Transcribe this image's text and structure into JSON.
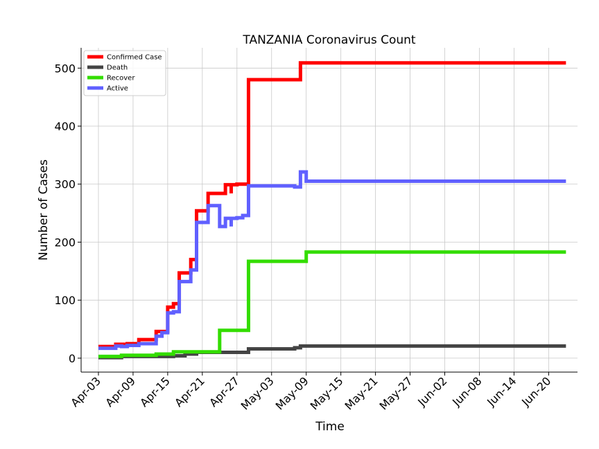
{
  "chart_data": {
    "type": "line",
    "title": "TANZANIA Coronavirus Count",
    "xlabel": "Time",
    "ylabel": "Number of Cases",
    "x_ticks": [
      "Apr-03",
      "Apr-09",
      "Apr-15",
      "Apr-21",
      "Apr-27",
      "May-03",
      "May-09",
      "May-15",
      "May-21",
      "May-27",
      "Jun-02",
      "Jun-08",
      "Jun-14",
      "Jun-20"
    ],
    "y_ticks": [
      0,
      100,
      200,
      300,
      400,
      500
    ],
    "ylim": [
      -24,
      535
    ],
    "xlim": [
      "2020-03-31",
      "2020-06-25"
    ],
    "grid": true,
    "legend_position": "top-left",
    "series": [
      {
        "name": "Confirmed Case",
        "color": "#ff0000",
        "points": [
          [
            "2020-04-03",
            20
          ],
          [
            "2020-04-06",
            24
          ],
          [
            "2020-04-08",
            25
          ],
          [
            "2020-04-10",
            32
          ],
          [
            "2020-04-13",
            46
          ],
          [
            "2020-04-15",
            53
          ],
          [
            "2020-04-15",
            88
          ],
          [
            "2020-04-16",
            94
          ],
          [
            "2020-04-17",
            147
          ],
          [
            "2020-04-19",
            170
          ],
          [
            "2020-04-20",
            254
          ],
          [
            "2020-04-22",
            284
          ],
          [
            "2020-04-25",
            299
          ],
          [
            "2020-04-26",
            284
          ],
          [
            "2020-04-26",
            299
          ],
          [
            "2020-04-27",
            300
          ],
          [
            "2020-04-29",
            307
          ],
          [
            "2020-04-29",
            480
          ],
          [
            "2020-05-08",
            509
          ],
          [
            "2020-06-23",
            509
          ]
        ]
      },
      {
        "name": "Death",
        "color": "#444444",
        "points": [
          [
            "2020-04-03",
            1
          ],
          [
            "2020-04-07",
            3
          ],
          [
            "2020-04-13",
            3
          ],
          [
            "2020-04-16",
            4
          ],
          [
            "2020-04-18",
            7
          ],
          [
            "2020-04-20",
            10
          ],
          [
            "2020-04-25",
            10
          ],
          [
            "2020-04-29",
            16
          ],
          [
            "2020-05-07",
            18
          ],
          [
            "2020-05-08",
            21
          ],
          [
            "2020-06-23",
            21
          ]
        ]
      },
      {
        "name": "Recover",
        "color": "#33dd00",
        "points": [
          [
            "2020-04-03",
            3
          ],
          [
            "2020-04-07",
            5
          ],
          [
            "2020-04-13",
            7
          ],
          [
            "2020-04-16",
            11
          ],
          [
            "2020-04-24",
            11
          ],
          [
            "2020-04-24",
            48
          ],
          [
            "2020-04-29",
            48
          ],
          [
            "2020-04-29",
            167
          ],
          [
            "2020-05-08",
            167
          ],
          [
            "2020-05-09",
            183
          ],
          [
            "2020-06-23",
            183
          ]
        ]
      },
      {
        "name": "Active",
        "color": "#6060ff",
        "points": [
          [
            "2020-04-03",
            17
          ],
          [
            "2020-04-06",
            21
          ],
          [
            "2020-04-07",
            20
          ],
          [
            "2020-04-08",
            22
          ],
          [
            "2020-04-10",
            25
          ],
          [
            "2020-04-13",
            38
          ],
          [
            "2020-04-14",
            44
          ],
          [
            "2020-04-15",
            78
          ],
          [
            "2020-04-16",
            80
          ],
          [
            "2020-04-17",
            132
          ],
          [
            "2020-04-19",
            152
          ],
          [
            "2020-04-20",
            234
          ],
          [
            "2020-04-22",
            263
          ],
          [
            "2020-04-24",
            227
          ],
          [
            "2020-04-25",
            241
          ],
          [
            "2020-04-26",
            227
          ],
          [
            "2020-04-26",
            241
          ],
          [
            "2020-04-27",
            242
          ],
          [
            "2020-04-28",
            246
          ],
          [
            "2020-04-29",
            297
          ],
          [
            "2020-05-07",
            295
          ],
          [
            "2020-05-08",
            321
          ],
          [
            "2020-05-09",
            305
          ],
          [
            "2020-06-23",
            305
          ]
        ]
      }
    ]
  }
}
